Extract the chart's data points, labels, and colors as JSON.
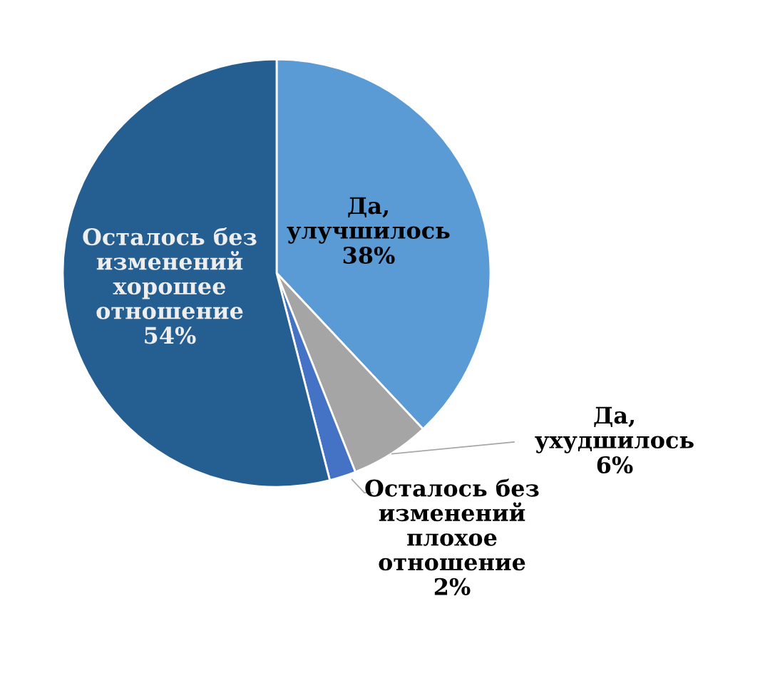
{
  "chart_data": {
    "type": "pie",
    "categories": [
      "Да, улучшилось",
      "Да, ухудшилось",
      "Осталось без изменений плохое отношение",
      "Осталось без изменений хорошее отношение"
    ],
    "values": [
      38,
      6,
      2,
      54
    ],
    "colors": [
      "#5b9bd5",
      "#a5a5a5",
      "#4472c4",
      "#255e91"
    ],
    "value_labels": [
      "38%",
      "6%",
      "2%",
      "54%"
    ]
  }
}
